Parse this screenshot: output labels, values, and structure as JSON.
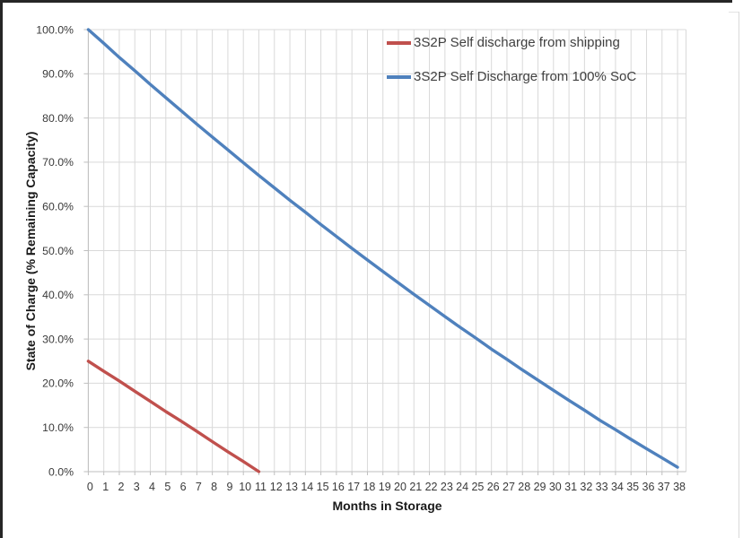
{
  "chart_data": {
    "type": "line",
    "xlabel": "Months in Storage",
    "ylabel": "State of Charge (% Remaining Capacity)",
    "x_ticks": [
      0,
      1,
      2,
      3,
      4,
      5,
      6,
      7,
      8,
      9,
      10,
      11,
      12,
      13,
      14,
      15,
      16,
      17,
      18,
      19,
      20,
      21,
      22,
      23,
      24,
      25,
      26,
      27,
      28,
      29,
      30,
      31,
      32,
      33,
      34,
      35,
      36,
      37,
      38
    ],
    "y_tick_labels": [
      "0.0%",
      "10.0%",
      "20.0%",
      "30.0%",
      "40.0%",
      "50.0%",
      "60.0%",
      "70.0%",
      "80.0%",
      "90.0%",
      "100.0%"
    ],
    "ylim": [
      0,
      100
    ],
    "grid": true,
    "legend_position": "top-right-inside",
    "series": [
      {
        "name": "3S2P Self discharge from shipping",
        "color": "#C0504D",
        "x": [
          0,
          1,
          2,
          3,
          4,
          5,
          6,
          7,
          8,
          9,
          10,
          11
        ],
        "values": [
          25.0,
          22.7,
          20.5,
          18.2,
          15.9,
          13.6,
          11.4,
          9.1,
          6.8,
          4.5,
          2.3,
          0.0
        ]
      },
      {
        "name": "3S2P Self Discharge from 100% SoC",
        "color": "#4F81BD",
        "x": [
          0,
          1,
          2,
          3,
          4,
          5,
          6,
          7,
          8,
          9,
          10,
          11,
          12,
          13,
          14,
          15,
          16,
          17,
          18,
          19,
          20,
          21,
          22,
          23,
          24,
          25,
          26,
          27,
          28,
          29,
          30,
          31,
          32,
          33,
          34,
          35,
          36,
          37,
          38
        ],
        "values": [
          100.0,
          96.9,
          93.7,
          90.7,
          87.6,
          84.6,
          81.6,
          78.6,
          75.7,
          72.8,
          69.9,
          67.0,
          64.2,
          61.4,
          58.7,
          55.9,
          53.2,
          50.5,
          47.9,
          45.3,
          42.7,
          40.1,
          37.6,
          35.1,
          32.6,
          30.2,
          27.7,
          25.4,
          23.0,
          20.7,
          18.4,
          16.1,
          13.9,
          11.6,
          9.5,
          7.3,
          5.2,
          3.1,
          1.0
        ]
      }
    ],
    "colors": {
      "gridline": "#D9D9D9",
      "axis_line": "#BFBFBF",
      "tick_text": "#3A3A3A",
      "title_text": "#1a1a1a",
      "page_border": "#262626"
    }
  }
}
